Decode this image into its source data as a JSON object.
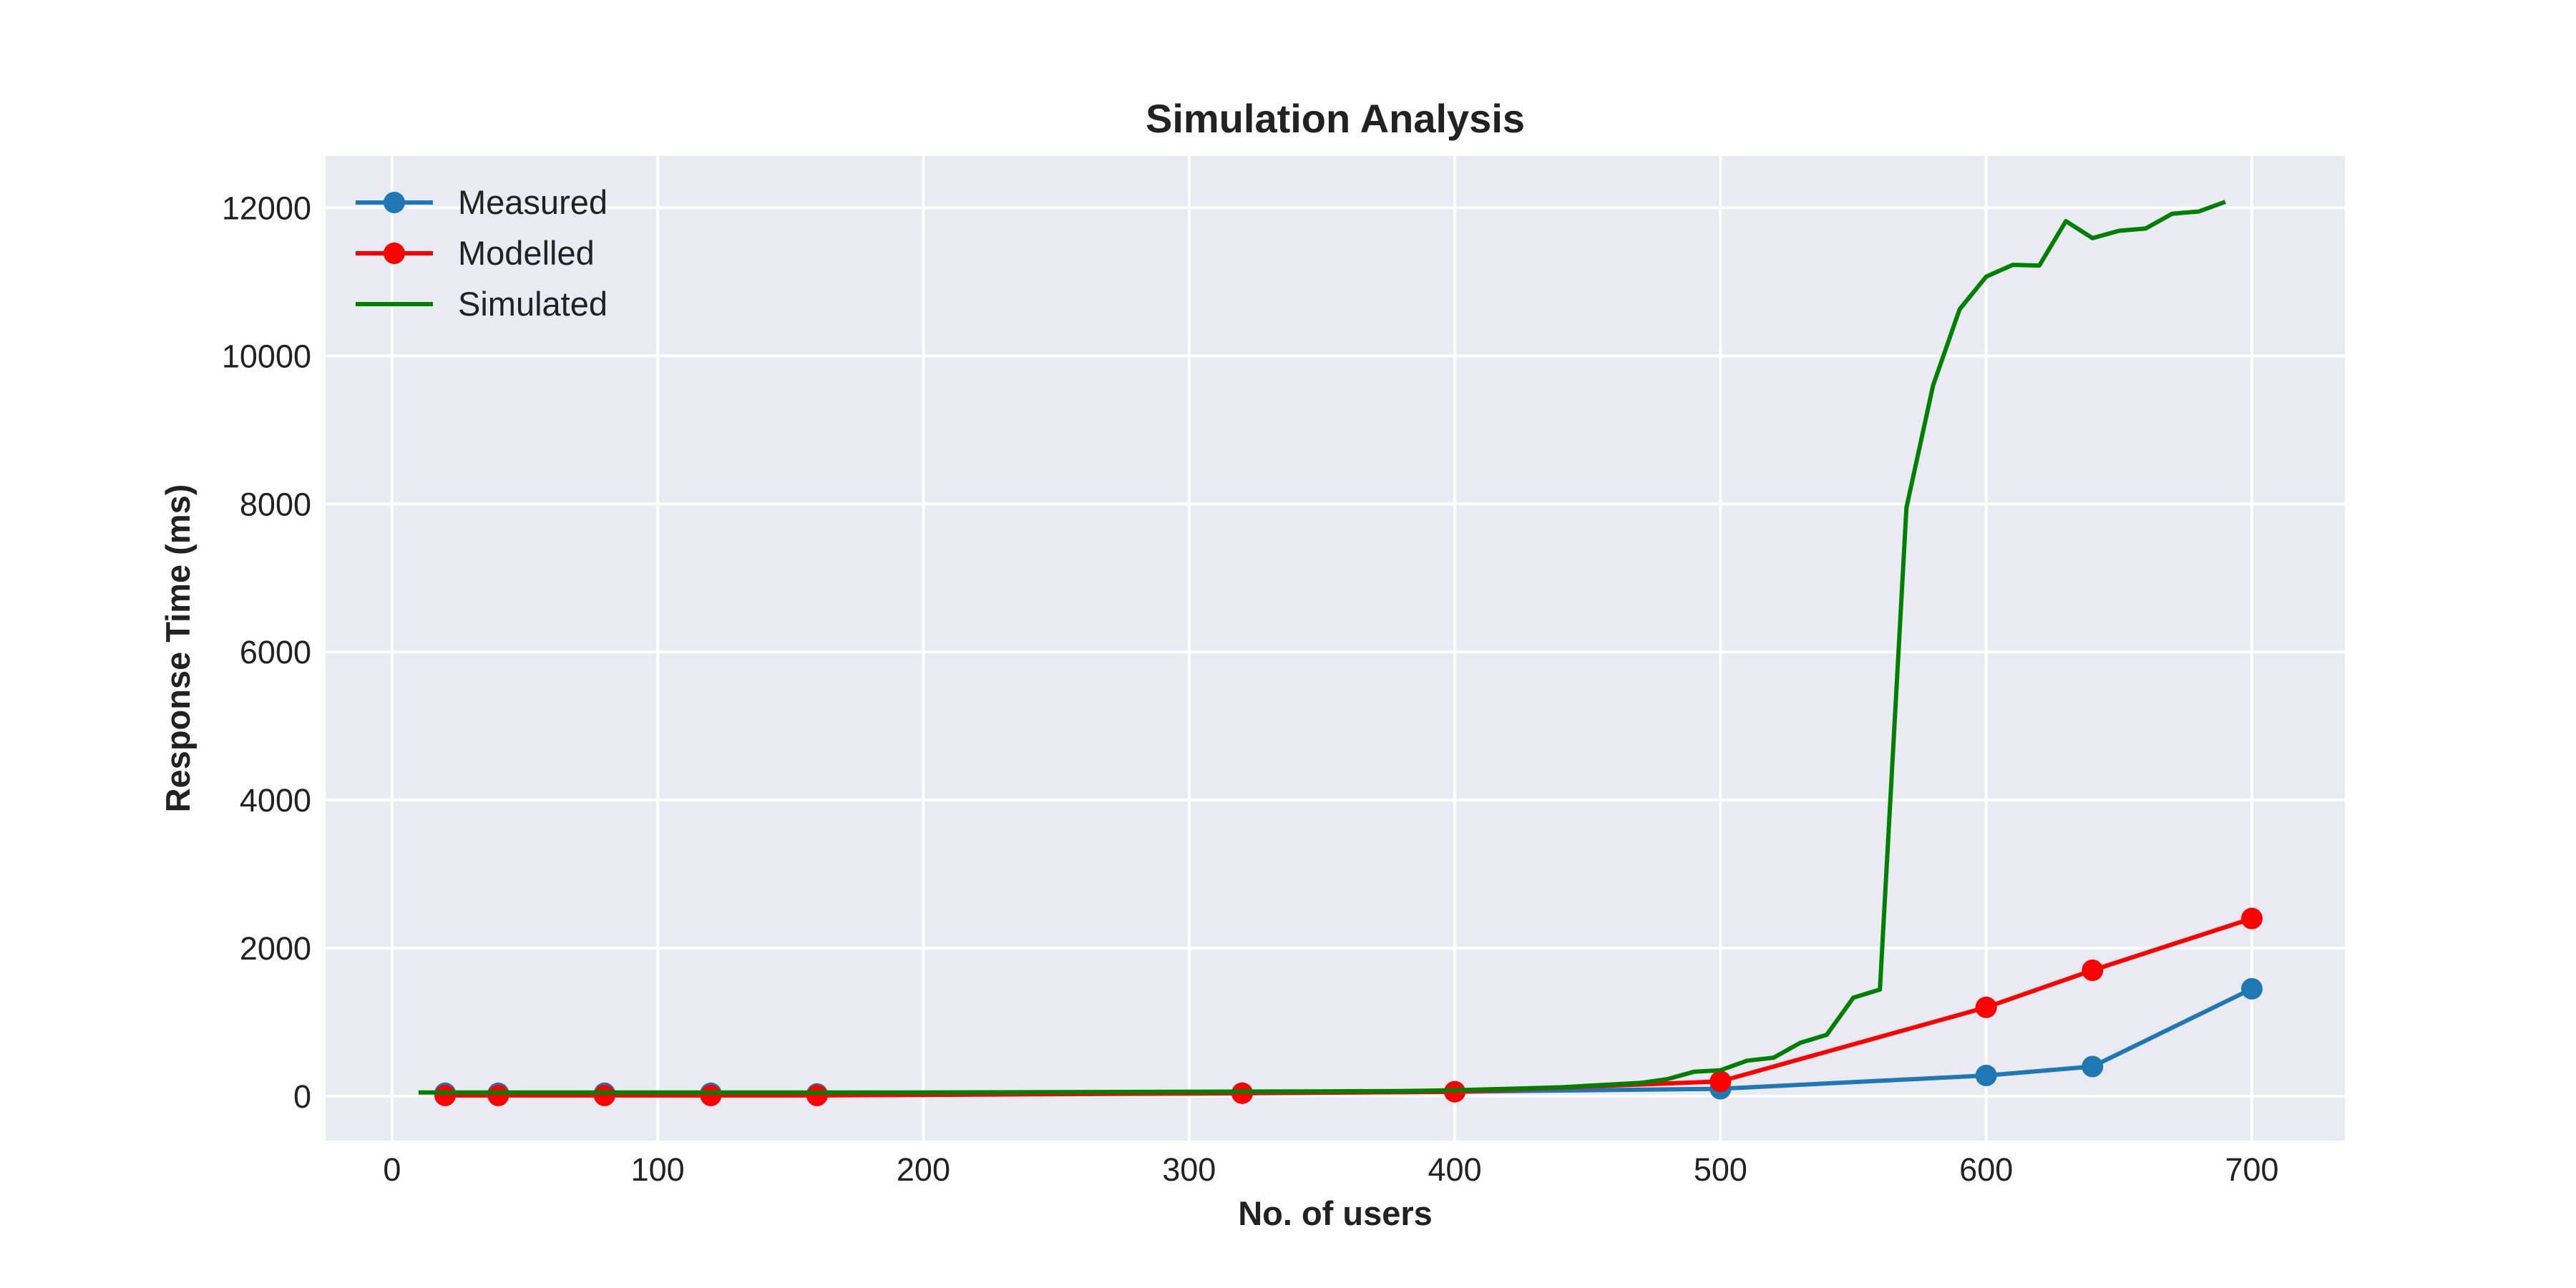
{
  "chart_data": {
    "type": "line",
    "title": "Simulation Analysis",
    "xlabel": "No. of users",
    "ylabel": "Response Time (ms)",
    "xlim": [
      -25,
      735
    ],
    "ylim": [
      -600,
      12700
    ],
    "xticks": [
      0,
      100,
      200,
      300,
      400,
      500,
      600,
      700
    ],
    "yticks": [
      0,
      2000,
      4000,
      6000,
      8000,
      10000,
      12000
    ],
    "grid": true,
    "legend_position": "top-left",
    "colors": {
      "background": "#eaeaf2",
      "grid": "#ffffff"
    },
    "series": [
      {
        "name": "Measured",
        "color": "#1f77b4",
        "marker": "circle",
        "x": [
          20,
          40,
          80,
          120,
          160,
          320,
          400,
          500,
          600,
          640,
          700
        ],
        "y": [
          40,
          40,
          40,
          40,
          30,
          40,
          60,
          100,
          280,
          400,
          1450
        ]
      },
      {
        "name": "Modelled",
        "color": "#ff0000",
        "marker": "circle",
        "x": [
          20,
          40,
          80,
          120,
          160,
          320,
          400,
          500,
          600,
          640,
          700
        ],
        "y": [
          10,
          10,
          10,
          10,
          10,
          40,
          60,
          200,
          1200,
          1700,
          2400
        ]
      },
      {
        "name": "Simulated",
        "color": "#008000",
        "marker": "none",
        "x": [
          10,
          20,
          30,
          40,
          60,
          80,
          100,
          120,
          150,
          200,
          250,
          300,
          350,
          380,
          400,
          420,
          440,
          450,
          460,
          470,
          480,
          490,
          500,
          510,
          520,
          530,
          540,
          550,
          560,
          570,
          580,
          590,
          600,
          610,
          620,
          630,
          640,
          650,
          660,
          670,
          680,
          690
        ],
        "y": [
          50,
          50,
          50,
          50,
          50,
          50,
          50,
          50,
          50,
          50,
          55,
          60,
          65,
          70,
          80,
          100,
          120,
          140,
          160,
          180,
          230,
          330,
          350,
          480,
          520,
          720,
          830,
          1330,
          1440,
          7950,
          9600,
          10630,
          11070,
          11230,
          11220,
          11820,
          11590,
          11690,
          11720,
          11920,
          11950,
          12080
        ]
      }
    ]
  }
}
